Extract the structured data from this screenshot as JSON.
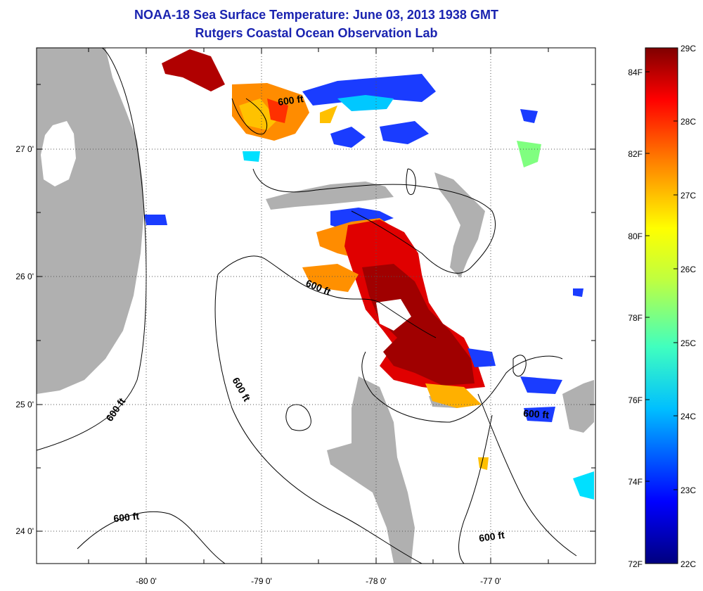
{
  "title": {
    "line1": "NOAA-18 Sea Surface Temperature:  June 03, 2013 1938 GMT",
    "line2": "Rutgers Coastal Ocean Observation Lab"
  },
  "axes": {
    "x_ticks": [
      "-80 0'",
      "-79 0'",
      "-78 0'",
      "-77 0'"
    ],
    "y_ticks": [
      "27 0'",
      "26 0'",
      "25 0'",
      "24 0'"
    ]
  },
  "contour_labels": [
    "600 ft",
    "600 ft",
    "600 ft",
    "600 ft",
    "600 ft",
    "600 ft"
  ],
  "colorbar": {
    "celsius_labels": [
      "29C",
      "28C",
      "27C",
      "26C",
      "25C",
      "24C",
      "23C",
      "22C"
    ],
    "fahrenheit_labels": [
      "84F",
      "82F",
      "80F",
      "78F",
      "76F",
      "74F",
      "72F"
    ],
    "range_c": [
      22,
      29
    ]
  },
  "colors": {
    "land": "#b0b0b0",
    "title": "#1a23b0"
  }
}
